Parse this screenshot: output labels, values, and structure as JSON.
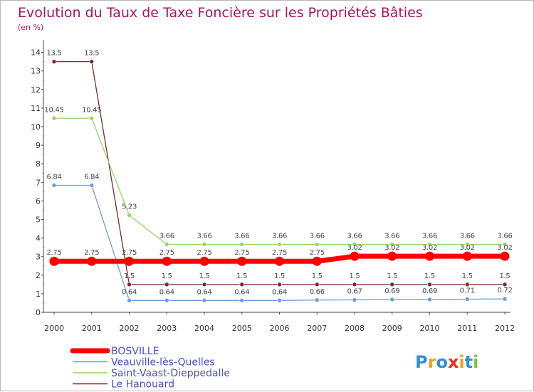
{
  "chart_data": {
    "type": "line",
    "title": "Evolution du Taux de Taxe Foncière sur les Propriétés Bâties",
    "subtitle": "(en %)",
    "xlabel": "",
    "ylabel": "(en %)",
    "x": [
      "2000",
      "2001",
      "2002",
      "2003",
      "2004",
      "2005",
      "2006",
      "2007",
      "2008",
      "2009",
      "2010",
      "2011",
      "2012"
    ],
    "ylim": [
      0,
      14
    ],
    "yticks": [
      "0",
      "1",
      "2",
      "3",
      "4",
      "5",
      "6",
      "7",
      "8",
      "9",
      "10",
      "11",
      "12",
      "13",
      "14"
    ],
    "series": [
      {
        "name": "BOSVILLE",
        "color": "#ff0000",
        "values": [
          2.75,
          2.75,
          2.75,
          2.75,
          2.75,
          2.75,
          2.75,
          2.75,
          3.02,
          3.02,
          3.02,
          3.02,
          3.02
        ],
        "labels": [
          "2.75",
          "2.75",
          "2.75",
          "2.75",
          "2.75",
          "2.75",
          "2.75",
          "2.75",
          "3.02",
          "3.02",
          "3.02",
          "3.02",
          "3.02"
        ]
      },
      {
        "name": "Veauville-lès-Quelles",
        "color": "#6a9fd4",
        "values": [
          6.84,
          6.84,
          0.64,
          0.64,
          0.64,
          0.64,
          0.64,
          0.66,
          0.67,
          0.69,
          0.69,
          0.71,
          0.72
        ],
        "labels": [
          "6.84",
          "6.84",
          "0.64",
          "0.64",
          "0.64",
          "0.64",
          "0.64",
          "0.66",
          "0.67",
          "0.69",
          "0.69",
          "0.71",
          "0.72"
        ]
      },
      {
        "name": "Saint-Vaast-Dieppedalle",
        "color": "#98d660",
        "values": [
          10.45,
          10.45,
          5.23,
          3.66,
          3.66,
          3.66,
          3.66,
          3.66,
          3.66,
          3.66,
          3.66,
          3.66,
          3.66
        ],
        "labels": [
          "10.45",
          "10.45",
          "5.23",
          "3.66",
          "3.66",
          "3.66",
          "3.66",
          "3.66",
          "3.66",
          "3.66",
          "3.66",
          "3.66",
          "3.66"
        ]
      },
      {
        "name": "Le Hanouard",
        "color": "#7a2a32",
        "values": [
          13.5,
          13.5,
          1.5,
          1.5,
          1.5,
          1.5,
          1.5,
          1.5,
          1.5,
          1.5,
          1.5,
          1.5,
          1.5
        ],
        "labels": [
          "13.5",
          "13.5",
          "1.5",
          "1.5",
          "1.5",
          "1.5",
          "1.5",
          "1.5",
          "1.5",
          "1.5",
          "1.5",
          "1.5",
          "1.5"
        ]
      }
    ],
    "legend": [
      "BOSVILLE",
      "Veauville-lès-Quelles",
      "Saint-Vaast-Dieppedalle",
      "Le Hanouard"
    ],
    "legend_position": "bottom-left",
    "grid": false
  },
  "brand": {
    "name": "Proxiti",
    "letters": [
      {
        "char": "P",
        "color": "#2f8fd8"
      },
      {
        "char": "r",
        "color": "#f0a020"
      },
      {
        "char": "o",
        "color": "#2f8fd8"
      },
      {
        "char": "x",
        "color": "#e8301c"
      },
      {
        "char": "i",
        "color": "#f0a020"
      },
      {
        "char": "t",
        "color": "#2f8fd8"
      },
      {
        "char": "i",
        "color": "#86c23c"
      }
    ]
  }
}
